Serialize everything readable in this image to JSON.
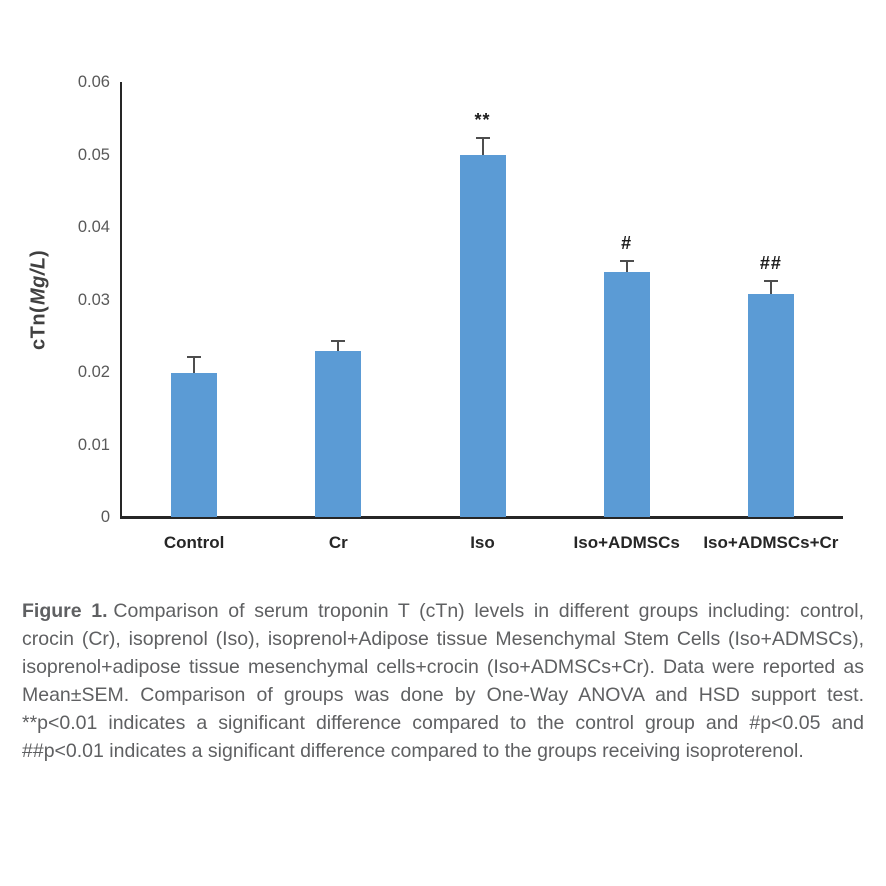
{
  "figure": {
    "caption": {
      "label": "Figure 1.",
      "text": "Comparison of serum troponin T (cTn) levels in different groups including: control, crocin (Cr), isoprenol (Iso), isoprenol+Adipose tissue Mesenchymal Stem Cells (Iso+ADMSCs), isoprenol+adipose tissue mesenchymal cells+crocin (Iso+ADMSCs+Cr). Data were reported as Mean±SEM. Comparison of groups was done by One-Way ANOVA and HSD support test. **p<0.01 indicates a significant difference compared to the control group and #p<0.05 and ##p<0.01 indicates a significant difference compared to the groups receiving isoproterenol."
    }
  },
  "chart_data": {
    "type": "bar",
    "categories": [
      "Control",
      "Cr",
      "Iso",
      "Iso+ADMSCs",
      "Iso+ADMSCs+Cr"
    ],
    "values": [
      0.0198,
      0.0229,
      0.05,
      0.0338,
      0.0308
    ],
    "errors": [
      0.0021,
      0.0012,
      0.0021,
      0.0014,
      0.0016
    ],
    "annotations": [
      "",
      "",
      "**",
      "#",
      "##"
    ],
    "title": "",
    "xlabel": "",
    "ylabel": "cTn(Mg/L)",
    "ylabel_parts": {
      "prefix": "cTn(",
      "italic": "Mg/L",
      "suffix": ")"
    },
    "ylim": [
      0,
      0.06
    ],
    "yticks": [
      0,
      0.01,
      0.02,
      0.03,
      0.04,
      0.05,
      0.06
    ],
    "ytick_labels": [
      "0",
      "0.01",
      "0.02",
      "0.03",
      "0.04",
      "0.05",
      "0.06"
    ],
    "grid": false,
    "legend": "none",
    "bar_color": "#5B9BD5",
    "error_bar_color": "#4d4d4d",
    "axis_color": "#262626"
  }
}
